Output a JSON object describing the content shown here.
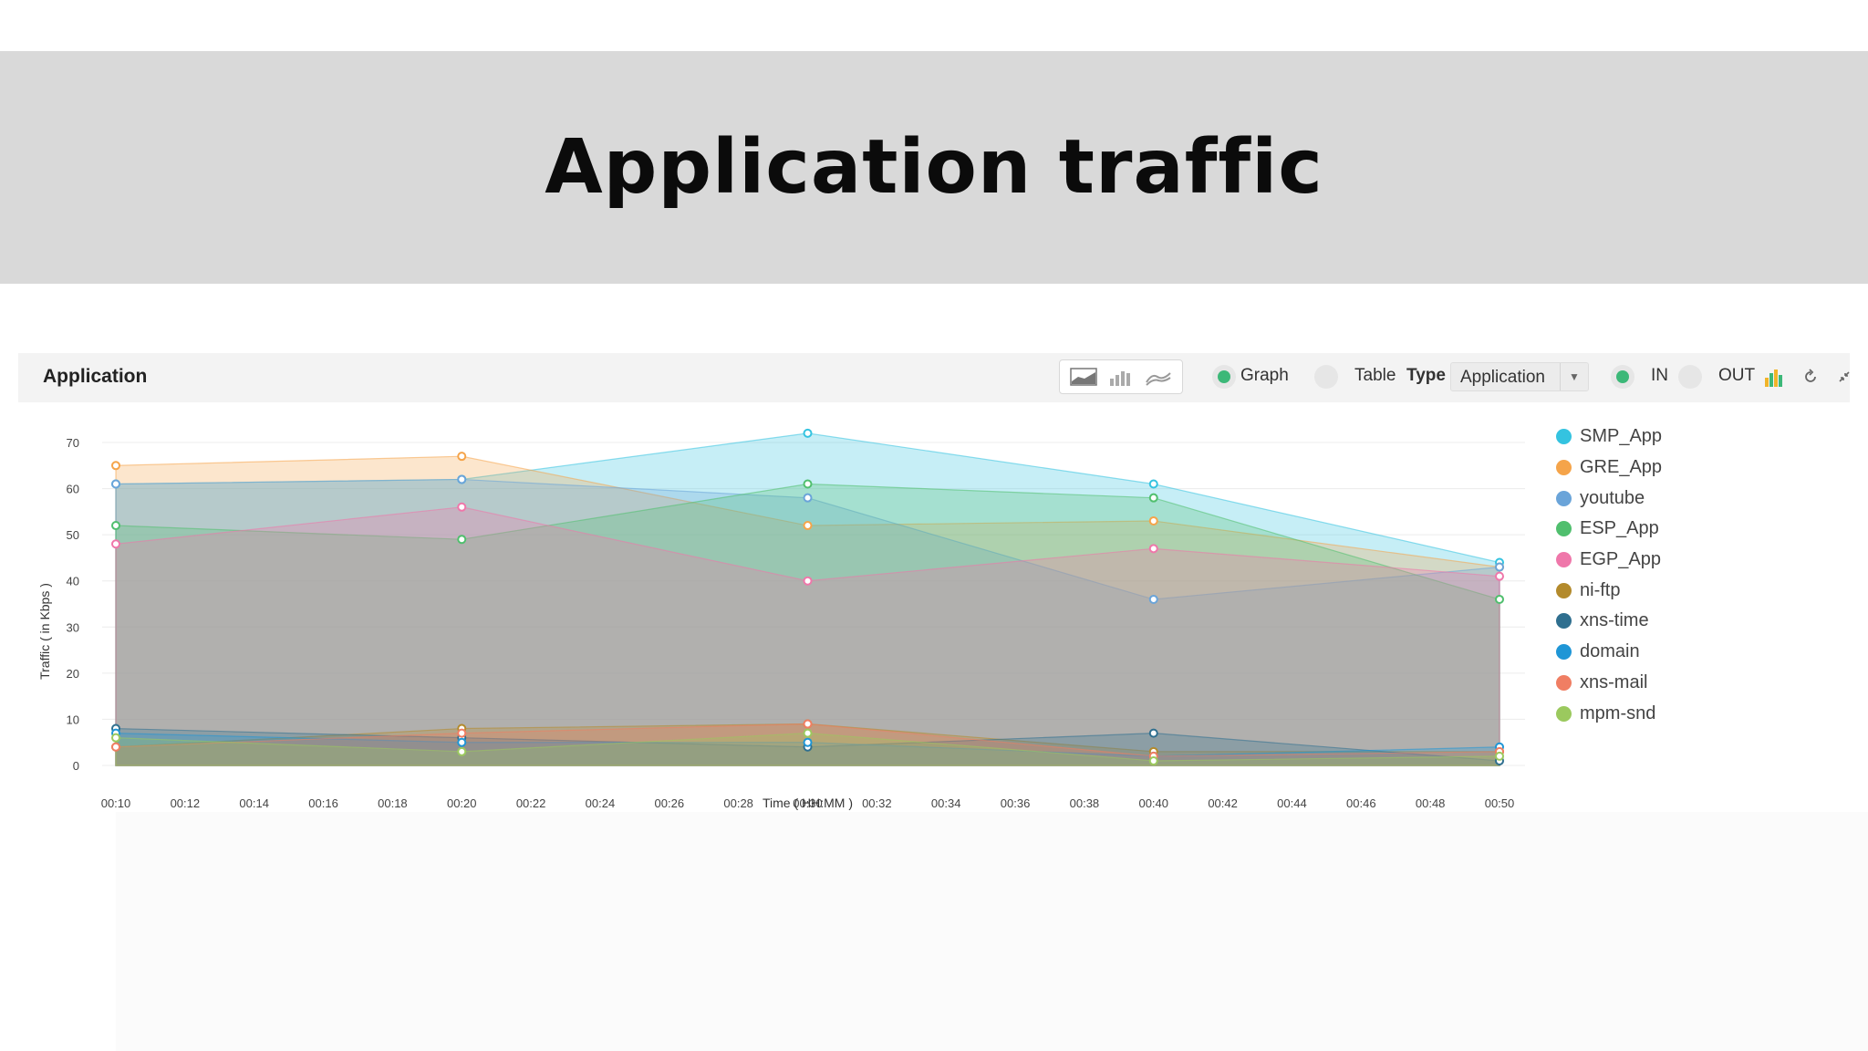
{
  "page": {
    "title": "Application traffic"
  },
  "panel": {
    "title": "Application",
    "chart_type_buttons": [
      {
        "name": "area-chart-icon"
      },
      {
        "name": "bar-chart-icon"
      },
      {
        "name": "line-chart-icon"
      }
    ],
    "view_toggle": {
      "graph_label": "Graph",
      "table_label": "Table",
      "selected": "Graph"
    },
    "type_filter": {
      "label": "Type",
      "value": "Application"
    },
    "direction_toggle": {
      "in_label": "IN",
      "out_label": "OUT",
      "selected": "IN"
    },
    "icons": [
      "bar-chart-icon",
      "refresh-icon",
      "collapse-icon"
    ],
    "accent_color": "#3cb878"
  },
  "chart_data": {
    "type": "area",
    "xlabel": "Time ( HH:MM )",
    "ylabel": "Traffic ( in Kbps )",
    "ylim": [
      0,
      70
    ],
    "yticks": [
      0,
      10,
      20,
      30,
      40,
      50,
      60,
      70
    ],
    "xticks": [
      "00:10",
      "00:12",
      "00:14",
      "00:16",
      "00:18",
      "00:20",
      "00:22",
      "00:24",
      "00:26",
      "00:28",
      "00:30",
      "00:32",
      "00:34",
      "00:36",
      "00:38",
      "00:40",
      "00:42",
      "00:44",
      "00:46",
      "00:48",
      "00:50"
    ],
    "x": [
      "00:10",
      "00:20",
      "00:30",
      "00:40",
      "00:50"
    ],
    "legend_position": "right",
    "series": [
      {
        "name": "SMP_App",
        "color": "#34c3e0",
        "values": [
          61,
          62,
          72,
          61,
          44
        ]
      },
      {
        "name": "GRE_App",
        "color": "#f5a44a",
        "values": [
          65,
          67,
          52,
          53,
          43
        ]
      },
      {
        "name": "youtube",
        "color": "#6aa4d9",
        "values": [
          61,
          62,
          58,
          36,
          43
        ]
      },
      {
        "name": "ESP_App",
        "color": "#50bf6e",
        "values": [
          52,
          49,
          61,
          58,
          36
        ]
      },
      {
        "name": "EGP_App",
        "color": "#ef77aa",
        "values": [
          48,
          56,
          40,
          47,
          41
        ]
      },
      {
        "name": "ni-ftp",
        "color": "#b38a2c",
        "values": [
          4,
          8,
          9,
          3,
          3
        ]
      },
      {
        "name": "xns-time",
        "color": "#2f6f8f",
        "values": [
          8,
          6,
          4,
          7,
          1
        ]
      },
      {
        "name": "domain",
        "color": "#1f96d6",
        "values": [
          7,
          5,
          5,
          2,
          4
        ]
      },
      {
        "name": "xns-mail",
        "color": "#f07e63",
        "values": [
          4,
          7,
          9,
          2,
          3
        ]
      },
      {
        "name": "mpm-snd",
        "color": "#9bc95e",
        "values": [
          6,
          3,
          7,
          1,
          2
        ]
      }
    ]
  }
}
